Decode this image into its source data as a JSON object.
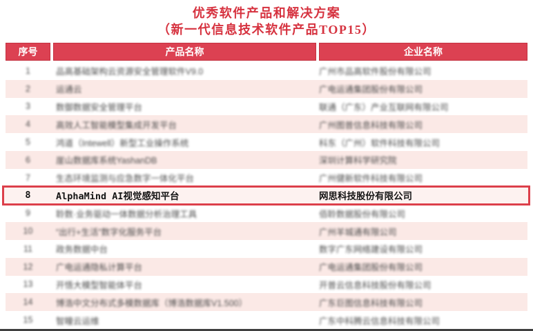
{
  "title": {
    "line1": "优秀软件产品和解决方案",
    "line2": "（新一代信息技术软件产品TOP15）"
  },
  "table": {
    "columns": [
      "序号",
      "产品名称",
      "企业名称"
    ],
    "rows": [
      {
        "no": "1",
        "product": "品高基础架构云资源安全管理软件V9.0",
        "company": "广州市品高软件股份有限公司",
        "highlighted": false
      },
      {
        "no": "2",
        "product": "运通云",
        "company": "广电运通集团股份有限公司",
        "highlighted": false
      },
      {
        "no": "3",
        "product": "数御数据安全管理平台",
        "company": "联通（广东）产业互联网有限公司",
        "highlighted": false
      },
      {
        "no": "4",
        "product": "高效人工智能模型集成开发平台",
        "company": "广州图普信息科技有限公司",
        "highlighted": false
      },
      {
        "no": "5",
        "product": "鸿道（Intewell）新型工业操作系统",
        "company": "科东（广州）软件科技有限公司",
        "highlighted": false
      },
      {
        "no": "6",
        "product": "崖山数据库系统YashanDB",
        "company": "深圳计算科学研究院",
        "highlighted": false
      },
      {
        "no": "7",
        "product": "生态环境监测与应急数字一体化平台",
        "company": "广州健新软件科技有限公司",
        "highlighted": false
      },
      {
        "no": "8",
        "product": "AlphaMind AI视觉感知平台",
        "company": "网思科技股份有限公司",
        "highlighted": true
      },
      {
        "no": "9",
        "product": "聆数·业务驱动一体数据分析治理工具",
        "company": "佰聆数据股份有限公司",
        "highlighted": false
      },
      {
        "no": "10",
        "product": "“出行+生活”数字化服务平台",
        "company": "广州羊城通有限公司",
        "highlighted": false
      },
      {
        "no": "11",
        "product": "政务数据中台",
        "company": "数字广东网络建设有限公司",
        "highlighted": false
      },
      {
        "no": "12",
        "product": "广电运通隐私计算平台",
        "company": "广电运通集团股份有限公司",
        "highlighted": false
      },
      {
        "no": "13",
        "product": "开悟大模型智能体平台",
        "company": "开普云信息科技股份有限公司",
        "highlighted": false
      },
      {
        "no": "14",
        "product": "博浩中文分布式多模数据库（博浩数据库V1.500）",
        "company": "广东巨图信息科技有限公司",
        "highlighted": false
      },
      {
        "no": "15",
        "product": "智瞳云运维",
        "company": "广东中科腾云信息科技有限公司",
        "highlighted": false
      }
    ]
  },
  "colors": {
    "title_red": "#d6323f",
    "header_bg": "#dc4152",
    "header_border": "#c43140",
    "row_pink": "#fbe9e6",
    "highlight_border": "#dc3f4a",
    "highlight_bg": "#fdf2f0",
    "bottom_bar": "#3f3f3f"
  }
}
